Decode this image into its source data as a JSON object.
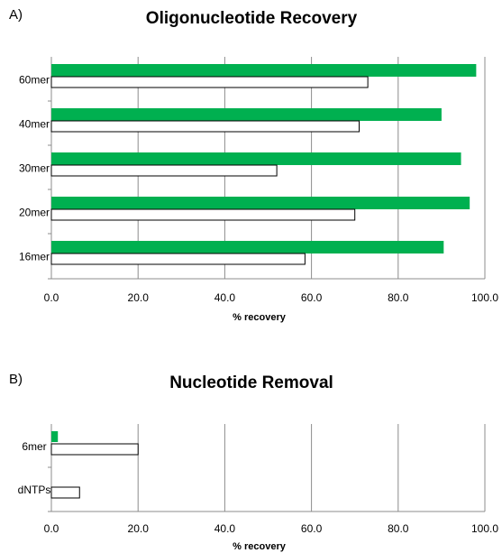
{
  "chart_data": [
    {
      "panel_label": "A)",
      "type": "bar",
      "orientation": "horizontal",
      "title": "Oligonucleotide Recovery",
      "xlabel": "% recovery",
      "ylabel": "",
      "categories": [
        "60mer",
        "40mer",
        "30mer",
        "20mer",
        "16mer"
      ],
      "series": [
        {
          "color": "#00b050",
          "values": [
            98,
            90,
            94.5,
            96.5,
            90.5
          ]
        },
        {
          "color": "#ffffff",
          "values": [
            73,
            71,
            52,
            70,
            58.5
          ]
        }
      ],
      "xlim": [
        0,
        100
      ],
      "xticks": [
        "0.0",
        "20.0",
        "40.0",
        "60.0",
        "80.0",
        "100.0"
      ],
      "grid": "vertical"
    },
    {
      "panel_label": "B)",
      "type": "bar",
      "orientation": "horizontal",
      "title": "Nucleotide Removal",
      "xlabel": "% recovery",
      "ylabel": "",
      "categories": [
        "6mer",
        "dNTPs"
      ],
      "series": [
        {
          "color": "#00b050",
          "values": [
            1.5,
            0
          ]
        },
        {
          "color": "#ffffff",
          "values": [
            20,
            6.5
          ]
        }
      ],
      "xlim": [
        0,
        100
      ],
      "xticks": [
        "0.0",
        "20.0",
        "40.0",
        "60.0",
        "80.0",
        "100.0"
      ],
      "grid": "vertical"
    }
  ]
}
